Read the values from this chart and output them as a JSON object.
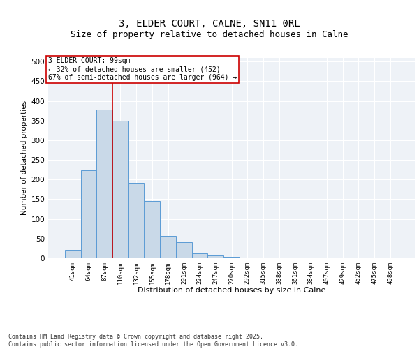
{
  "title_line1": "3, ELDER COURT, CALNE, SN11 0RL",
  "title_line2": "Size of property relative to detached houses in Calne",
  "xlabel": "Distribution of detached houses by size in Calne",
  "ylabel": "Number of detached properties",
  "categories": [
    "41sqm",
    "64sqm",
    "87sqm",
    "110sqm",
    "132sqm",
    "155sqm",
    "178sqm",
    "201sqm",
    "224sqm",
    "247sqm",
    "270sqm",
    "292sqm",
    "315sqm",
    "338sqm",
    "361sqm",
    "384sqm",
    "407sqm",
    "429sqm",
    "452sqm",
    "475sqm",
    "498sqm"
  ],
  "values": [
    22,
    223,
    378,
    350,
    192,
    145,
    57,
    40,
    12,
    7,
    3,
    1,
    0,
    0,
    0,
    0,
    0,
    0,
    0,
    0,
    0
  ],
  "bar_color": "#c9d9e8",
  "bar_edge_color": "#5b9bd5",
  "vline_x": 2.5,
  "vline_color": "#cc0000",
  "annotation_text": "3 ELDER COURT: 99sqm\n← 32% of detached houses are smaller (452)\n67% of semi-detached houses are larger (964) →",
  "annotation_box_color": "#cc0000",
  "annotation_fontsize": 7,
  "ylim": [
    0,
    510
  ],
  "yticks": [
    0,
    50,
    100,
    150,
    200,
    250,
    300,
    350,
    400,
    450,
    500
  ],
  "background_color": "#eef2f7",
  "footer_text": "Contains HM Land Registry data © Crown copyright and database right 2025.\nContains public sector information licensed under the Open Government Licence v3.0.",
  "title_fontsize": 10,
  "subtitle_fontsize": 9,
  "xlabel_fontsize": 8,
  "ylabel_fontsize": 7.5
}
